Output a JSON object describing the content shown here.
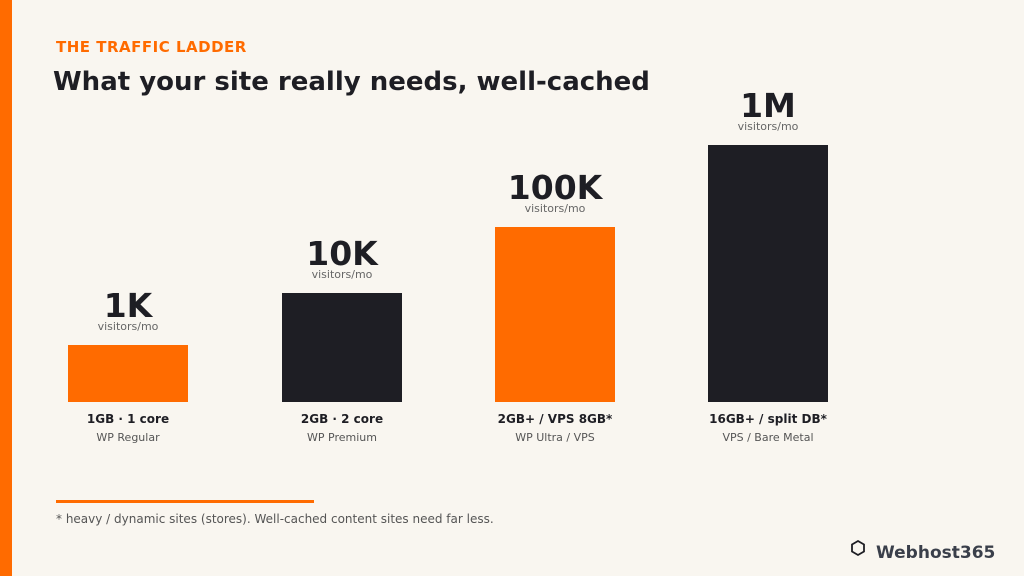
{
  "header": {
    "kicker": "THE TRAFFIC LADDER",
    "title": "What your site really needs, well-cached"
  },
  "steps": [
    {
      "value": "1K",
      "unit": "visitors/mo",
      "spec": "1GB · 1 core",
      "plan": "WP Regular"
    },
    {
      "value": "10K",
      "unit": "visitors/mo",
      "spec": "2GB · 2 core",
      "plan": "WP Premium"
    },
    {
      "value": "100K",
      "unit": "visitors/mo",
      "spec": "2GB+ / VPS 8GB*",
      "plan": "WP Ultra / VPS"
    },
    {
      "value": "1M",
      "unit": "visitors/mo",
      "spec": "16GB+ / split DB*",
      "plan": "VPS / Bare Metal"
    }
  ],
  "footnote": "* heavy / dynamic sites (stores). Well-cached content sites need far less.",
  "brand": "Webhost365"
}
